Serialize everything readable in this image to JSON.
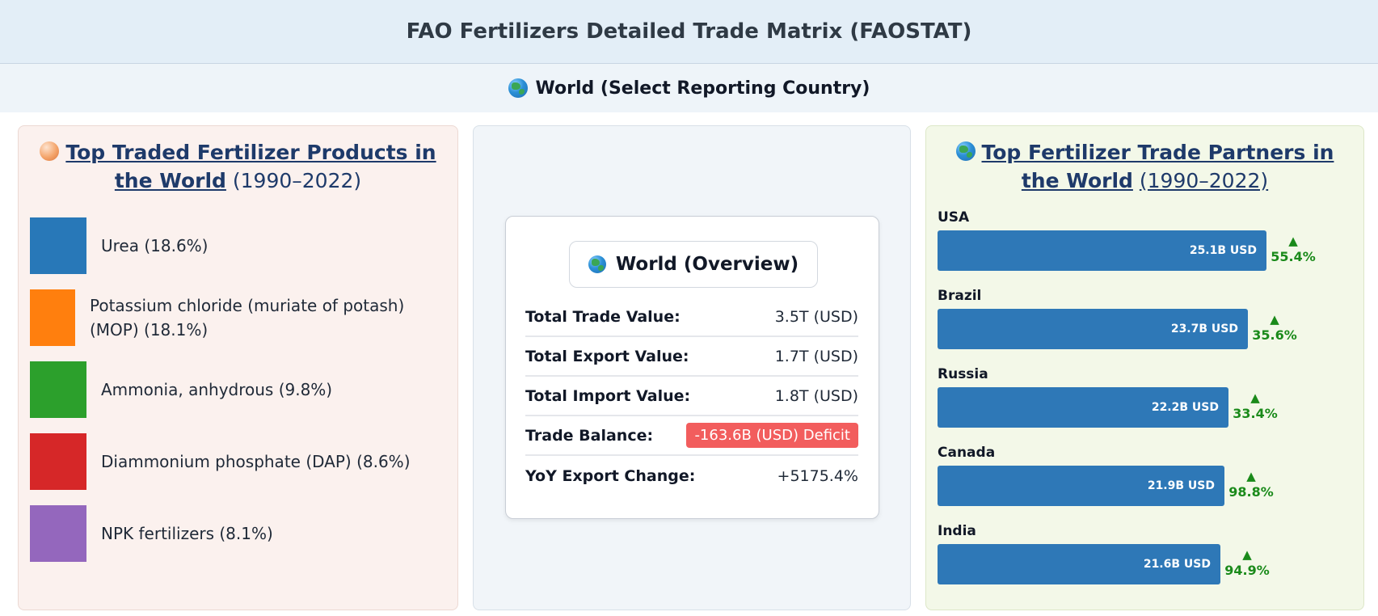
{
  "header": {
    "title": "FAO Fertilizers Detailed Trade Matrix (FAOSTAT)"
  },
  "country_selector": {
    "icon": "globe-icon",
    "label": "World (Select Reporting Country)"
  },
  "left_panel": {
    "icon": "fertilizer-ball-icon",
    "title_link": "Top Traded Fertilizer Products in the World",
    "years": "(1990–2022)",
    "products": [
      {
        "label": "Urea (18.6%)",
        "color": "#2878b8",
        "share_pct": 18.6
      },
      {
        "label": "Potassium chloride (muriate of potash) (MOP) (18.1%)",
        "color": "#ff7f0e",
        "share_pct": 18.1
      },
      {
        "label": "Ammonia, anhydrous (9.8%)",
        "color": "#2ca02c",
        "share_pct": 9.8
      },
      {
        "label": "Diammonium phosphate (DAP) (8.6%)",
        "color": "#d62728",
        "share_pct": 8.6
      },
      {
        "label": "NPK fertilizers (8.1%)",
        "color": "#9467bd",
        "share_pct": 8.1
      }
    ]
  },
  "overview": {
    "icon": "globe-icon",
    "title": "World (Overview)",
    "rows": [
      {
        "label": "Total Trade Value:",
        "value": "3.5T (USD)"
      },
      {
        "label": "Total Export Value:",
        "value": "1.7T (USD)"
      },
      {
        "label": "Total Import Value:",
        "value": "1.8T (USD)"
      },
      {
        "label": "Trade Balance:",
        "value": "-163.6B (USD) Deficit",
        "badge_color": "#f25d5d"
      },
      {
        "label": "YoY Export Change:",
        "value": "+5175.4%"
      }
    ]
  },
  "right_panel": {
    "icon": "globe-icon",
    "title_link": "Top Fertilizer Trade Partners in the World",
    "years": "(1990–2022)",
    "max_value_b": 25.1,
    "partners": [
      {
        "name": "USA",
        "value_label": "25.1B USD",
        "value_b": 25.1,
        "change_label": "55.4%",
        "trend": "up"
      },
      {
        "name": "Brazil",
        "value_label": "23.7B USD",
        "value_b": 23.7,
        "change_label": "35.6%",
        "trend": "up"
      },
      {
        "name": "Russia",
        "value_label": "22.2B USD",
        "value_b": 22.2,
        "change_label": "33.4%",
        "trend": "up"
      },
      {
        "name": "Canada",
        "value_label": "21.9B USD",
        "value_b": 21.9,
        "change_label": "98.8%",
        "trend": "up"
      },
      {
        "name": "India",
        "value_label": "21.6B USD",
        "value_b": 21.6,
        "change_label": "94.9%",
        "trend": "up"
      }
    ],
    "colors": {
      "bar": "#2e78b7",
      "up": "#1a8a1a"
    }
  }
}
